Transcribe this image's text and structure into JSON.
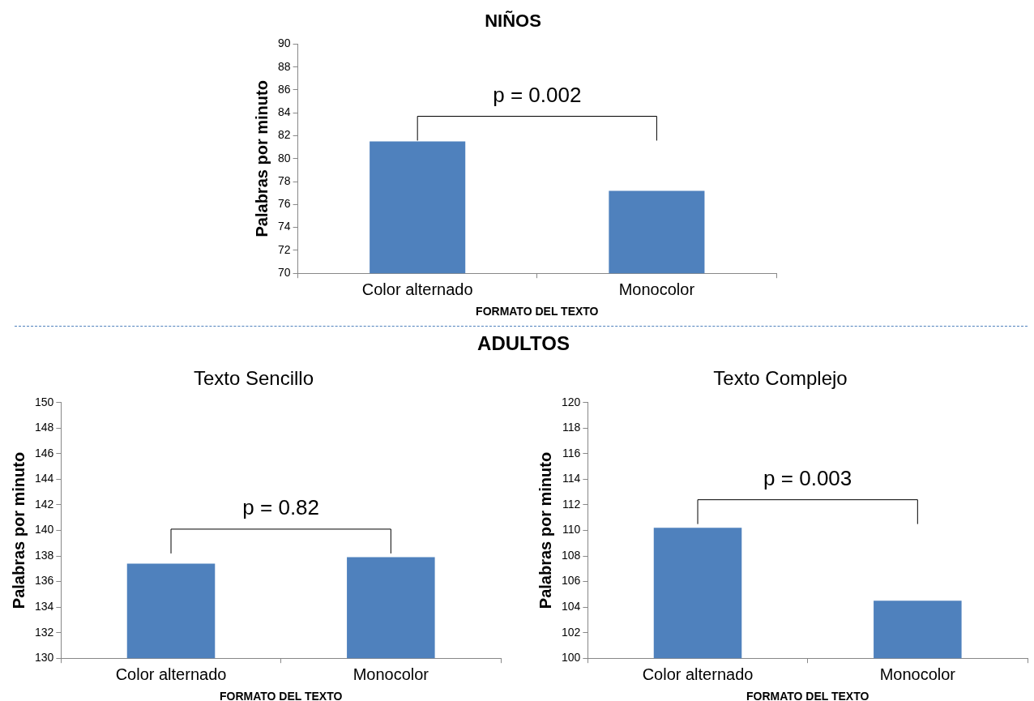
{
  "chart_data": [
    {
      "type": "bar",
      "title": "NIÑOS",
      "xlabel": "FORMATO DEL TEXTO",
      "ylabel": "Palabras por minuto",
      "categories": [
        "Color alternado",
        "Monocolor"
      ],
      "values": [
        81.5,
        77.2
      ],
      "color": "#4f81bd",
      "ylim": [
        70,
        90
      ],
      "yticks": [
        70,
        72,
        74,
        76,
        78,
        80,
        82,
        84,
        86,
        88,
        90
      ],
      "grid": false,
      "legend": false,
      "annotations": [
        "p = 0.002"
      ]
    },
    {
      "type": "bar",
      "subtitle": "ADULTOS",
      "title": "Texto Sencillo",
      "xlabel": "FORMATO DEL TEXTO",
      "ylabel": "Palabras por minuto",
      "categories": [
        "Color alternado",
        "Monocolor"
      ],
      "values": [
        137.4,
        137.9
      ],
      "color": "#4f81bd",
      "ylim": [
        130,
        150
      ],
      "yticks": [
        130,
        132,
        134,
        136,
        138,
        140,
        142,
        144,
        146,
        148,
        150
      ],
      "grid": false,
      "legend": false,
      "annotations": [
        "p = 0.82"
      ]
    },
    {
      "type": "bar",
      "title": "Texto Complejo",
      "xlabel": "FORMATO DEL TEXTO",
      "ylabel": "Palabras por minuto",
      "categories": [
        "Color alternado",
        "Monocolor"
      ],
      "values": [
        110.2,
        104.5
      ],
      "color": "#4f81bd",
      "ylim": [
        100,
        120
      ],
      "yticks": [
        100,
        102,
        104,
        106,
        108,
        110,
        112,
        114,
        116,
        118,
        120
      ],
      "grid": false,
      "legend": false,
      "annotations": [
        "p = 0.003"
      ]
    }
  ]
}
